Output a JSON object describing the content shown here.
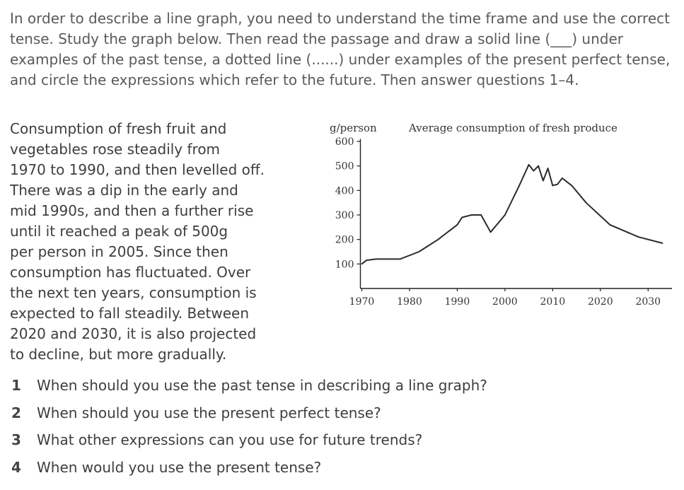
{
  "intro": {
    "text": "In order to describe a line graph, you need to understand the time frame and use the correct tense. Study the graph below. Then read the passage and draw a solid line (___) under examples of the past tense, a dotted line (......) under examples of the present perfect tense, and circle the expressions which refer to the future. Then answer questions 1–4."
  },
  "passage": {
    "lines": [
      "Consumption of fresh fruit and",
      "vegetables rose steadily from",
      "1970 to 1990, and then levelled off.",
      "There was a dip in the early and",
      "mid 1990s, and then a further rise",
      "until it reached a peak of 500g",
      "per person in 2005. Since then",
      "consumption has fluctuated. Over",
      "the next ten years, consumption is",
      "expected to fall steadily. Between",
      "2020 and 2030, it is also projected",
      "to decline, but more gradually."
    ]
  },
  "questions": [
    {
      "num": "1",
      "text": "When should you use the past tense in describing a line graph?"
    },
    {
      "num": "2",
      "text": "When should you use the present perfect tense?"
    },
    {
      "num": "3",
      "text": "What other expressions can you use for future trends?"
    },
    {
      "num": "4",
      "text": "When would you use the present tense?"
    }
  ],
  "chart_data": {
    "type": "line",
    "title": "Average consumption of fresh produce",
    "ylabel": "g/person",
    "xlabel": "",
    "x": [
      1970,
      1971,
      1973,
      1978,
      1982,
      1986,
      1990,
      1991,
      1993,
      1995,
      1997,
      2000,
      2003,
      2005,
      2006,
      2007,
      2008,
      2009,
      2010,
      2011,
      2012,
      2014,
      2017,
      2022,
      2028,
      2033
    ],
    "y": [
      100,
      115,
      120,
      120,
      150,
      200,
      260,
      290,
      300,
      300,
      230,
      300,
      420,
      505,
      480,
      500,
      440,
      490,
      420,
      425,
      450,
      420,
      350,
      260,
      210,
      185
    ],
    "xticks": [
      "1970",
      "1980",
      "1990",
      "2000",
      "2010",
      "2020",
      "2030"
    ],
    "yticks": [
      "100",
      "200",
      "300",
      "400",
      "500",
      "600"
    ],
    "xlim": [
      1968,
      2035
    ],
    "ylim": [
      0,
      600
    ],
    "grid": false,
    "line_color": "#2b2b2b"
  }
}
